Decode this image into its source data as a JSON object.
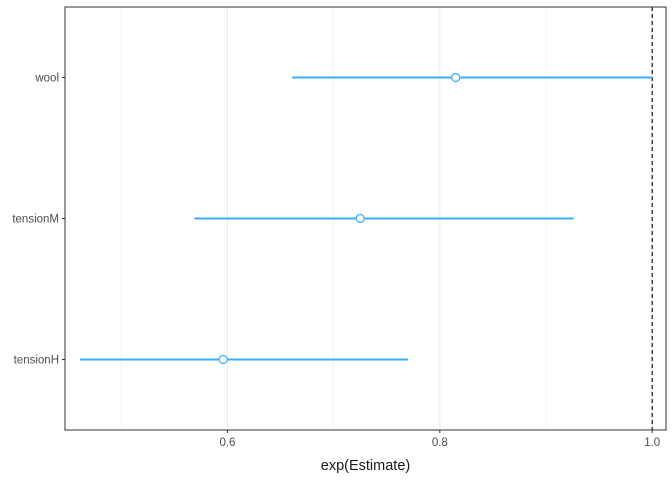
{
  "chart_data": {
    "type": "scatter",
    "subtype": "forest-plot",
    "title": "",
    "xlabel": "exp(Estimate)",
    "ylabel": "",
    "xlim": [
      0.447,
      1.013
    ],
    "xticks": [
      0.6,
      0.8,
      1.0
    ],
    "xtick_labels": [
      "0.6",
      "0.8",
      "1.0"
    ],
    "categories": [
      "wool",
      "tensionM",
      "tensionH"
    ],
    "estimates": [
      0.815,
      0.725,
      0.596
    ],
    "ci_lower": [
      0.661,
      0.569,
      0.461
    ],
    "ci_upper": [
      1.0,
      0.926,
      0.77
    ],
    "reference_line": 1.0,
    "grid": "vertical major and minor",
    "legend": "none",
    "colors": {
      "series": "#3aaefa",
      "point_fill": "#ffffff",
      "grid": "#ebebeb",
      "axis": "#333333",
      "tick_text": "#4d4d4d",
      "title_text": "#1a1a1a",
      "reference": "#000000"
    }
  }
}
